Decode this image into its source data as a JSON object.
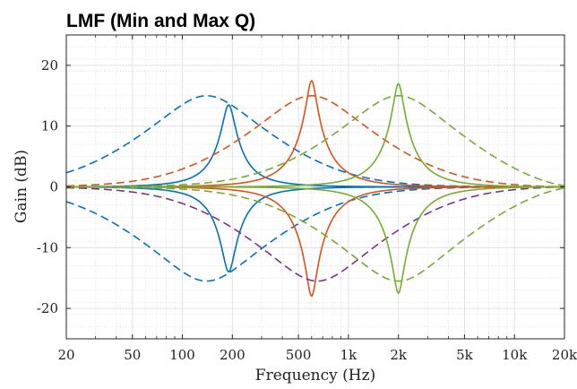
{
  "chart_data": {
    "type": "line",
    "title": "LMF (Min and Max Q)",
    "xlabel": "Frequency (Hz)",
    "ylabel": "Gain (dB)",
    "xscale": "log",
    "xlim": [
      20,
      20000
    ],
    "ylim": [
      -25,
      25
    ],
    "xticks": [
      20,
      50,
      100,
      200,
      500,
      1000,
      2000,
      5000,
      10000,
      20000
    ],
    "xtick_labels": [
      "20",
      "50",
      "100",
      "200",
      "500",
      "1k",
      "2k",
      "5k",
      "10k",
      "20k"
    ],
    "yticks": [
      -20,
      -10,
      0,
      10,
      20
    ],
    "ytick_labels": [
      "-20",
      "-10",
      "0",
      "10",
      "20"
    ],
    "grid": true,
    "colors": {
      "blue": "#0072BD",
      "orange": "#D95319",
      "green": "#77AC30",
      "purple": "#7E2F8E"
    },
    "series": [
      {
        "color": "#0072BD",
        "dash": "solid",
        "f0": 190,
        "gain": 13.5,
        "q": 3.0
      },
      {
        "color": "#0072BD",
        "dash": "solid",
        "f0": 190,
        "gain": -14,
        "q": 3.0
      },
      {
        "color": "#0072BD",
        "dash": "dashed",
        "f0": 140,
        "gain": 15,
        "q": 0.4
      },
      {
        "color": "#0072BD",
        "dash": "dashed",
        "f0": 140,
        "gain": -15.5,
        "q": 0.4
      },
      {
        "color": "#D95319",
        "dash": "solid",
        "f0": 600,
        "gain": 17.5,
        "q": 3.0
      },
      {
        "color": "#D95319",
        "dash": "solid",
        "f0": 600,
        "gain": -18,
        "q": 3.0
      },
      {
        "color": "#D95319",
        "dash": "dashed",
        "f0": 600,
        "gain": 15,
        "q": 0.4
      },
      {
        "color": "#7E2F8E",
        "dash": "dashed",
        "f0": 650,
        "gain": -15.5,
        "q": 0.4
      },
      {
        "color": "#77AC30",
        "dash": "solid",
        "f0": 2000,
        "gain": 17,
        "q": 3.0
      },
      {
        "color": "#77AC30",
        "dash": "solid",
        "f0": 2000,
        "gain": -17.5,
        "q": 3.0
      },
      {
        "color": "#77AC30",
        "dash": "dashed",
        "f0": 2000,
        "gain": 15,
        "q": 0.4
      },
      {
        "color": "#77AC30",
        "dash": "dashed",
        "f0": 2000,
        "gain": -15.5,
        "q": 0.4
      }
    ]
  }
}
